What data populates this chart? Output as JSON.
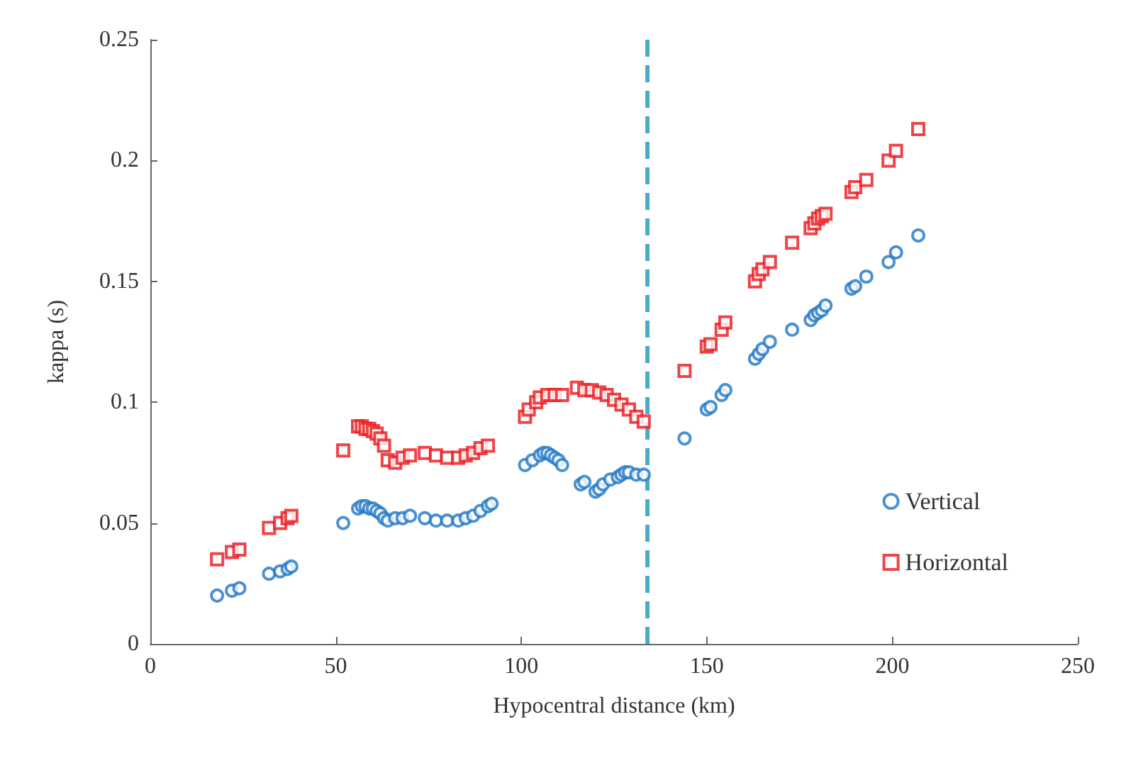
{
  "chart_data": {
    "type": "scatter",
    "xlabel": "Hypocentral distance (km)",
    "ylabel": "kappa (s)",
    "xlim": [
      0,
      250
    ],
    "xticks": [
      0,
      50,
      100,
      150,
      200,
      250
    ],
    "ylim": [
      0,
      0.25
    ],
    "yticks": [
      0,
      0.05,
      0.1,
      0.15,
      0.2,
      0.25
    ],
    "grid": false,
    "legend": "bottom right",
    "ref_lines": [
      {
        "axis": "x",
        "value": 134,
        "color": "#4bacc6",
        "line_style": "dashed"
      }
    ],
    "series": [
      {
        "name": "Vertical",
        "color": "#1f77c4",
        "marker": "circle",
        "x": [
          18,
          22,
          24,
          32,
          35,
          37,
          38,
          52,
          56,
          57,
          58,
          59,
          60,
          61,
          62,
          63,
          64,
          66,
          68,
          70,
          74,
          77,
          80,
          83,
          85,
          87,
          89,
          91,
          92,
          101,
          103,
          105,
          106,
          107,
          108,
          109,
          110,
          111,
          116,
          117,
          120,
          121,
          122,
          124,
          126,
          127,
          128,
          129,
          131,
          133,
          144,
          150,
          151,
          154,
          155,
          163,
          164,
          165,
          167,
          173,
          178,
          179,
          180,
          181,
          182,
          189,
          190,
          193,
          199,
          201,
          207
        ],
        "values": [
          0.02,
          0.022,
          0.023,
          0.029,
          0.03,
          0.031,
          0.032,
          0.05,
          0.056,
          0.057,
          0.057,
          0.056,
          0.056,
          0.055,
          0.054,
          0.052,
          0.051,
          0.052,
          0.052,
          0.053,
          0.052,
          0.051,
          0.051,
          0.051,
          0.052,
          0.053,
          0.055,
          0.057,
          0.058,
          0.074,
          0.076,
          0.078,
          0.079,
          0.079,
          0.078,
          0.077,
          0.076,
          0.074,
          0.066,
          0.067,
          0.063,
          0.064,
          0.066,
          0.068,
          0.069,
          0.07,
          0.071,
          0.071,
          0.07,
          0.07,
          0.085,
          0.097,
          0.098,
          0.103,
          0.105,
          0.118,
          0.12,
          0.122,
          0.125,
          0.13,
          0.134,
          0.136,
          0.137,
          0.138,
          0.14,
          0.147,
          0.148,
          0.152,
          0.158,
          0.162,
          0.169
        ]
      },
      {
        "name": "Horizontal",
        "color": "#e8171c",
        "marker": "square",
        "x": [
          18,
          22,
          24,
          32,
          35,
          37,
          38,
          52,
          56,
          57,
          58,
          59,
          60,
          61,
          62,
          63,
          64,
          66,
          68,
          70,
          74,
          77,
          80,
          83,
          85,
          87,
          89,
          91,
          101,
          102,
          104,
          105,
          107,
          109,
          111,
          115,
          117,
          119,
          121,
          123,
          125,
          127,
          129,
          131,
          133,
          144,
          150,
          151,
          154,
          155,
          163,
          164,
          165,
          167,
          173,
          178,
          179,
          180,
          181,
          182,
          189,
          190,
          193,
          199,
          201,
          207
        ],
        "values": [
          0.035,
          0.038,
          0.039,
          0.048,
          0.05,
          0.052,
          0.053,
          0.08,
          0.09,
          0.09,
          0.089,
          0.089,
          0.088,
          0.087,
          0.085,
          0.082,
          0.076,
          0.075,
          0.077,
          0.078,
          0.079,
          0.078,
          0.077,
          0.077,
          0.078,
          0.079,
          0.081,
          0.082,
          0.094,
          0.097,
          0.1,
          0.102,
          0.103,
          0.103,
          0.103,
          0.106,
          0.105,
          0.105,
          0.104,
          0.103,
          0.101,
          0.099,
          0.097,
          0.094,
          0.092,
          0.113,
          0.123,
          0.124,
          0.13,
          0.133,
          0.15,
          0.153,
          0.155,
          0.158,
          0.166,
          0.172,
          0.174,
          0.176,
          0.177,
          0.178,
          0.187,
          0.189,
          0.192,
          0.2,
          0.204,
          0.213
        ]
      }
    ]
  }
}
